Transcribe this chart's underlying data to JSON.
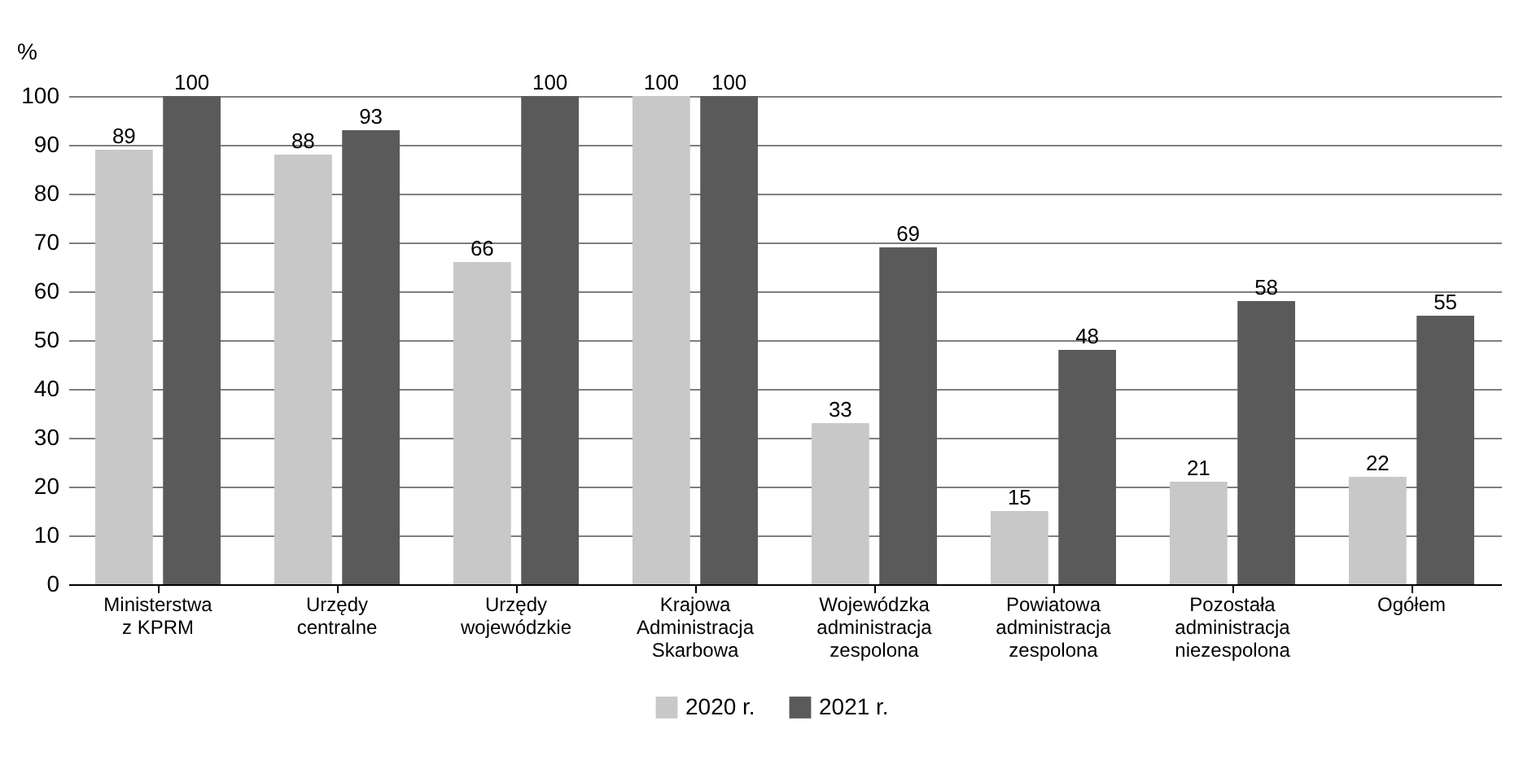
{
  "chart_data": {
    "type": "bar",
    "ylabel": "%",
    "categories": [
      "Ministerstwa z KPRM",
      "Urzędy centralne",
      "Urzędy wojewódzkie",
      "Krajowa Administracja Skarbowa",
      "Wojewódzka administracja zespolona",
      "Powiatowa administracja zespolona",
      "Pozostała administracja niezespolona",
      "Ogółem"
    ],
    "series": [
      {
        "name": "2020 r.",
        "color": "#c8c8c8",
        "values": [
          89,
          88,
          66,
          100,
          33,
          15,
          21,
          22
        ]
      },
      {
        "name": "2021 r.",
        "color": "#5a5a5a",
        "values": [
          100,
          93,
          100,
          100,
          69,
          48,
          58,
          55
        ]
      }
    ],
    "ylim": [
      0,
      100
    ],
    "yticks": [
      0,
      10,
      20,
      30,
      40,
      50,
      60,
      70,
      80,
      90,
      100
    ],
    "grid": "y",
    "legend": "bottom",
    "data_labels": true
  }
}
